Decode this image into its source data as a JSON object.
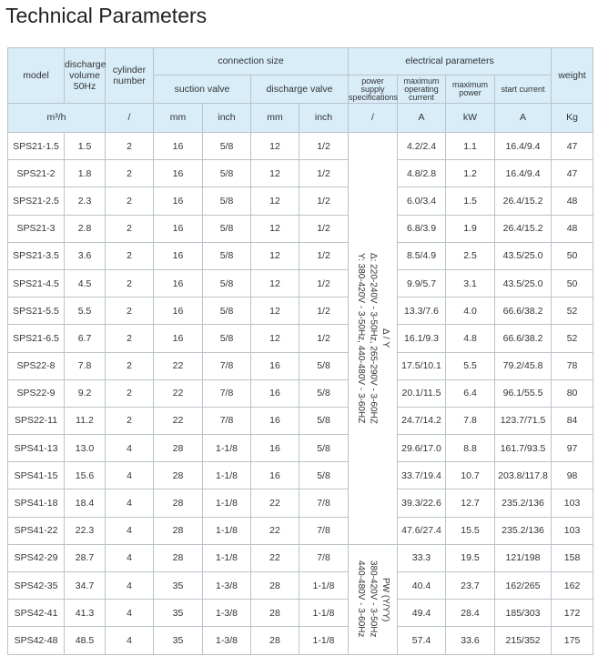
{
  "title": "Technical Parameters",
  "header": {
    "model": "model",
    "discharge_volume": "discharge volume 50Hz",
    "cylinder": "cylinder number",
    "connection_size": "connection size",
    "suction_valve": "suction valve",
    "discharge_valve": "discharge valve",
    "electrical": "electrical parameters",
    "power_supply": "power supply specifications",
    "max_current": "maximum operating current",
    "max_power": "maximum power",
    "start_current": "start current",
    "weight": "weight",
    "units": [
      "m³/h",
      "/",
      "mm",
      "inch",
      "mm",
      "inch",
      "/",
      "A",
      "kW",
      "A",
      "Kg"
    ]
  },
  "power_supply_groups": [
    {
      "lines": [
        "Δ / Y",
        "Δ: 220-240V - 3-50Hz,   265-290V - 3-60HZ",
        "Y: 380-420V - 3-50Hz,   440-480V - 3-60HZ"
      ]
    },
    {
      "lines": [
        "PW (Y/YY)",
        "380-420V - 3-50Hz",
        "440-480V - 3-60Hz"
      ]
    }
  ],
  "rows": [
    [
      "SPS21-1.5",
      "1.5",
      "2",
      "16",
      "5/8",
      "12",
      "1/2",
      "4.2/2.4",
      "1.1",
      "16.4/9.4",
      "47"
    ],
    [
      "SPS21-2",
      "1.8",
      "2",
      "16",
      "5/8",
      "12",
      "1/2",
      "4.8/2.8",
      "1.2",
      "16.4/9.4",
      "47"
    ],
    [
      "SPS21-2.5",
      "2.3",
      "2",
      "16",
      "5/8",
      "12",
      "1/2",
      "6.0/3.4",
      "1.5",
      "26.4/15.2",
      "48"
    ],
    [
      "SPS21-3",
      "2.8",
      "2",
      "16",
      "5/8",
      "12",
      "1/2",
      "6.8/3.9",
      "1.9",
      "26.4/15.2",
      "48"
    ],
    [
      "SPS21-3.5",
      "3.6",
      "2",
      "16",
      "5/8",
      "12",
      "1/2",
      "8.5/4.9",
      "2.5",
      "43.5/25.0",
      "50"
    ],
    [
      "SPS21-4.5",
      "4.5",
      "2",
      "16",
      "5/8",
      "12",
      "1/2",
      "9.9/5.7",
      "3.1",
      "43.5/25.0",
      "50"
    ],
    [
      "SPS21-5.5",
      "5.5",
      "2",
      "16",
      "5/8",
      "12",
      "1/2",
      "13.3/7.6",
      "4.0",
      "66.6/38.2",
      "52"
    ],
    [
      "SPS21-6.5",
      "6.7",
      "2",
      "16",
      "5/8",
      "12",
      "1/2",
      "16.1/9.3",
      "4.8",
      "66.6/38.2",
      "52"
    ],
    [
      "SPS22-8",
      "7.8",
      "2",
      "22",
      "7/8",
      "16",
      "5/8",
      "17.5/10.1",
      "5.5",
      "79.2/45.8",
      "78"
    ],
    [
      "SPS22-9",
      "9.2",
      "2",
      "22",
      "7/8",
      "16",
      "5/8",
      "20.1/11.5",
      "6.4",
      "96.1/55.5",
      "80"
    ],
    [
      "SPS22-11",
      "11.2",
      "2",
      "22",
      "7/8",
      "16",
      "5/8",
      "24.7/14.2",
      "7.8",
      "123.7/71.5",
      "84"
    ],
    [
      "SPS41-13",
      "13.0",
      "4",
      "28",
      "1-1/8",
      "16",
      "5/8",
      "29.6/17.0",
      "8.8",
      "161.7/93.5",
      "97"
    ],
    [
      "SPS41-15",
      "15.6",
      "4",
      "28",
      "1-1/8",
      "16",
      "5/8",
      "33.7/19.4",
      "10.7",
      "203.8/117.8",
      "98"
    ],
    [
      "SPS41-18",
      "18.4",
      "4",
      "28",
      "1-1/8",
      "22",
      "7/8",
      "39.3/22.6",
      "12.7",
      "235.2/136",
      "103"
    ],
    [
      "SPS41-22",
      "22.3",
      "4",
      "28",
      "1-1/8",
      "22",
      "7/8",
      "47.6/27.4",
      "15.5",
      "235.2/136",
      "103"
    ],
    [
      "SPS42-29",
      "28.7",
      "4",
      "28",
      "1-1/8",
      "22",
      "7/8",
      "33.3",
      "19.5",
      "121/198",
      "158"
    ],
    [
      "SPS42-35",
      "34.7",
      "4",
      "35",
      "1-3/8",
      "28",
      "1-1/8",
      "40.4",
      "23.7",
      "162/265",
      "162"
    ],
    [
      "SPS42-41",
      "41.3",
      "4",
      "35",
      "1-3/8",
      "28",
      "1-1/8",
      "49.4",
      "28.4",
      "185/303",
      "172"
    ],
    [
      "SPS42-48",
      "48.5",
      "4",
      "35",
      "1-3/8",
      "28",
      "1-1/8",
      "57.4",
      "33.6",
      "215/352",
      "175"
    ]
  ]
}
